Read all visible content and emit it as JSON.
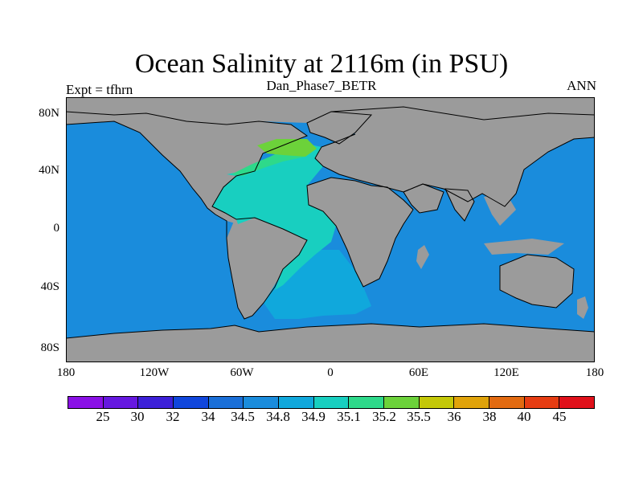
{
  "title": "Ocean Salinity at 2116m (in PSU)",
  "experiment_label": "Expt = tfhrn",
  "case_label": "Dan_Phase7_BETR",
  "period_label": "ANN",
  "y_ticks": [
    "80N",
    "40N",
    "0",
    "40S",
    "80S"
  ],
  "x_ticks": [
    "180",
    "120W",
    "60W",
    "0",
    "60E",
    "120E",
    "180"
  ],
  "colors": {
    "land": "#9b9b9b",
    "ocean_base": "#1a8cdc",
    "ocean_south_atlantic": "#10a8dc",
    "ocean_atlantic": "#18cfc0",
    "ocean_north_atlantic": "#2ed98a",
    "ocean_labrador": "#6cd23a",
    "coastline": "#000000"
  },
  "colorbar": {
    "colors": [
      "#8a10e6",
      "#6618e0",
      "#3c20d8",
      "#1046dc",
      "#1a6fd8",
      "#1a8cdc",
      "#10a8dc",
      "#18cfc0",
      "#2ed98a",
      "#6cd23a",
      "#c4c808",
      "#e0a30a",
      "#e26a10",
      "#e63c12",
      "#e0101a"
    ],
    "labels": [
      "25",
      "30",
      "32",
      "34",
      "34.5",
      "34.8",
      "34.9",
      "35.1",
      "35.2",
      "35.5",
      "36",
      "38",
      "40",
      "45"
    ]
  }
}
